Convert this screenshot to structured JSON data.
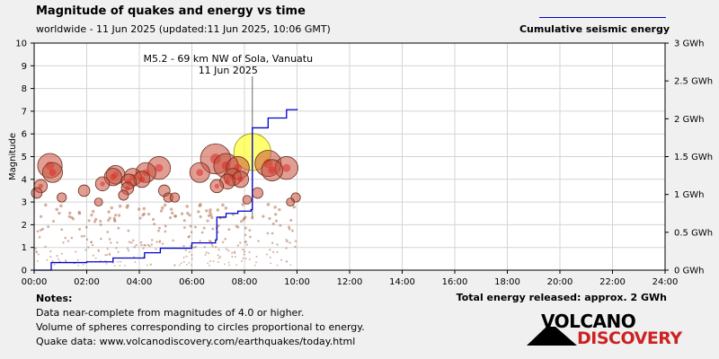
{
  "header": {
    "title": "Magnitude of quakes and energy vs time",
    "subtitle": "worldwide - 11 Jun 2025 (updated:11 Jun 2025, 10:06 GMT)"
  },
  "legend": {
    "label": "Cumulative seismic energy",
    "line_color": "#0000cc"
  },
  "footer": {
    "notes_heading": "Notes:",
    "note_1": "Data near-complete from magnitudes of 4.0 or higher.",
    "note_2": "Volume of spheres corresponding to circles proportional to energy.",
    "note_3": "Quake data: www.volcanodiscovery.com/earthquakes/today.html",
    "total_energy": "Total energy released: approx. 2 GWh"
  },
  "logo": {
    "word_1": "VOLCANO",
    "word_2": "DISCOVERY"
  },
  "chart_data": {
    "type": "scatter",
    "title": "Magnitude of quakes and energy vs time",
    "xlabel": "",
    "ylabel": "Magnitude",
    "y2label": "Cumulative seismic energy",
    "xlim": [
      0,
      24
    ],
    "ylim": [
      0,
      10
    ],
    "y2lim": [
      0,
      3
    ],
    "x_ticks": [
      "00:00",
      "02:00",
      "04:00",
      "06:00",
      "08:00",
      "10:00",
      "12:00",
      "14:00",
      "16:00",
      "18:00",
      "20:00",
      "22:00",
      "24:00"
    ],
    "y_ticks": [
      "0",
      "1",
      "2",
      "3",
      "4",
      "5",
      "6",
      "7",
      "8",
      "9",
      "10"
    ],
    "y2_ticks": [
      "0 GWh",
      "0.5 GWh",
      "1 GWh",
      "1.5 GWh",
      "2 GWh",
      "2.5 GWh",
      "3 GWh"
    ],
    "grid": true,
    "annotation": {
      "line_1": "M5.2 - 69 km NW of Sola, Vanuatu",
      "line_2": "11 Jun 2025",
      "time": 8.3,
      "magnitude": 5.2
    },
    "large_quakes": [
      {
        "t": 0.1,
        "m": 3.4
      },
      {
        "t": 0.25,
        "m": 3.7
      },
      {
        "t": 0.6,
        "m": 4.6
      },
      {
        "t": 0.7,
        "m": 4.3
      },
      {
        "t": 1.05,
        "m": 3.2
      },
      {
        "t": 1.9,
        "m": 3.5
      },
      {
        "t": 2.45,
        "m": 3.0
      },
      {
        "t": 2.6,
        "m": 3.8
      },
      {
        "t": 3.0,
        "m": 4.1
      },
      {
        "t": 3.1,
        "m": 4.2
      },
      {
        "t": 3.4,
        "m": 3.3
      },
      {
        "t": 3.55,
        "m": 3.6
      },
      {
        "t": 3.6,
        "m": 3.9
      },
      {
        "t": 3.75,
        "m": 4.1
      },
      {
        "t": 4.1,
        "m": 4.0
      },
      {
        "t": 4.25,
        "m": 4.3
      },
      {
        "t": 4.75,
        "m": 4.5
      },
      {
        "t": 4.95,
        "m": 3.5
      },
      {
        "t": 5.1,
        "m": 3.2
      },
      {
        "t": 5.35,
        "m": 3.2
      },
      {
        "t": 6.3,
        "m": 4.3
      },
      {
        "t": 6.9,
        "m": 4.9
      },
      {
        "t": 6.95,
        "m": 3.7
      },
      {
        "t": 7.3,
        "m": 4.6
      },
      {
        "t": 7.35,
        "m": 3.9
      },
      {
        "t": 7.55,
        "m": 4.1
      },
      {
        "t": 7.75,
        "m": 4.5
      },
      {
        "t": 7.85,
        "m": 4.0
      },
      {
        "t": 8.1,
        "m": 3.1
      },
      {
        "t": 8.3,
        "m": 5.2
      },
      {
        "t": 8.5,
        "m": 3.4
      },
      {
        "t": 8.9,
        "m": 4.7
      },
      {
        "t": 9.05,
        "m": 4.4
      },
      {
        "t": 9.6,
        "m": 4.5
      },
      {
        "t": 9.75,
        "m": 3.0
      },
      {
        "t": 9.95,
        "m": 3.2
      }
    ],
    "small_quake_count": 300,
    "small_quake_range": {
      "t": [
        0,
        10
      ],
      "m": [
        0.2,
        2.9
      ]
    },
    "cumulative_energy_gwh": [
      {
        "t": 0.0,
        "e": 0.0
      },
      {
        "t": 0.6,
        "e": 0.0
      },
      {
        "t": 0.65,
        "e": 0.1
      },
      {
        "t": 2.0,
        "e": 0.11
      },
      {
        "t": 3.0,
        "e": 0.16
      },
      {
        "t": 4.2,
        "e": 0.23
      },
      {
        "t": 4.8,
        "e": 0.29
      },
      {
        "t": 6.0,
        "e": 0.36
      },
      {
        "t": 6.9,
        "e": 0.4
      },
      {
        "t": 6.95,
        "e": 0.7
      },
      {
        "t": 7.3,
        "e": 0.75
      },
      {
        "t": 7.75,
        "e": 0.78
      },
      {
        "t": 8.25,
        "e": 0.8
      },
      {
        "t": 8.3,
        "e": 1.88
      },
      {
        "t": 8.9,
        "e": 2.01
      },
      {
        "t": 9.6,
        "e": 2.12
      },
      {
        "t": 10.0,
        "e": 2.13
      }
    ]
  }
}
